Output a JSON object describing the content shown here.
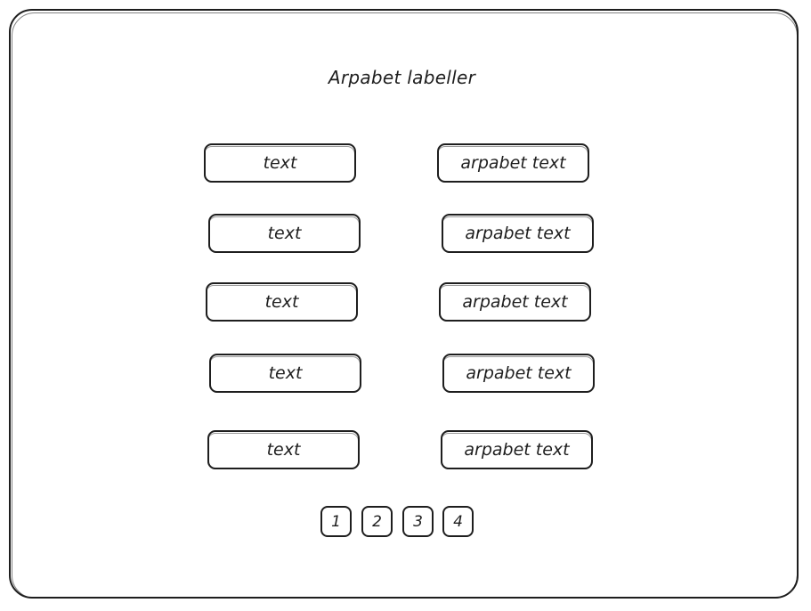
{
  "title": "Arpabet labeller",
  "rows": [
    {
      "text": "text",
      "arpabet": "arpabet text"
    },
    {
      "text": "text",
      "arpabet": "arpabet text"
    },
    {
      "text": "text",
      "arpabet": "arpabet text"
    },
    {
      "text": "text",
      "arpabet": "arpabet text"
    },
    {
      "text": "text",
      "arpabet": "arpabet text"
    }
  ],
  "pagination": [
    "1",
    "2",
    "3",
    "4"
  ]
}
